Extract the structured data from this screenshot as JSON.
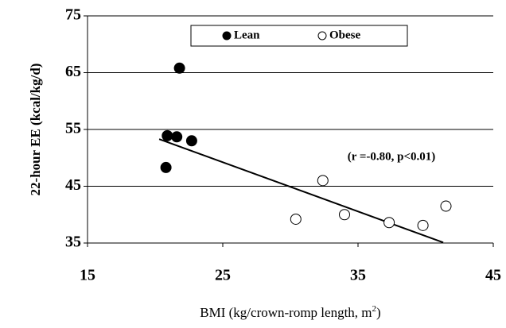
{
  "chart_data": {
    "type": "scatter",
    "x_label": [
      "BMI (kg/crown-romp length, m",
      "2",
      ")"
    ],
    "y_label": "22-hour EE (kcal/kg/d)",
    "series": [
      {
        "name": "Lean",
        "color": "#000000",
        "marker": "filled",
        "x": [
          20.8,
          20.9,
          21.6,
          22.7,
          21.8
        ],
        "values": [
          48.3,
          53.9,
          53.7,
          53.0,
          65.8
        ]
      },
      {
        "name": "Obese",
        "color": "#000000",
        "marker": "open",
        "x": [
          30.4,
          32.4,
          34.0,
          37.3,
          39.8,
          41.5
        ],
        "values": [
          39.2,
          46.0,
          40.0,
          38.6,
          38.1,
          41.5
        ]
      }
    ],
    "trendline": {
      "x": [
        20.3,
        41.3
      ],
      "values": [
        53.3,
        35.1
      ]
    },
    "annotation": "(r =-0.80, p<0.01)",
    "xlim": [
      15,
      45
    ],
    "xticks": [
      15,
      25,
      35,
      45
    ],
    "ylim": [
      35,
      75
    ],
    "yticks": [
      35,
      45,
      55,
      65,
      75
    ],
    "grid": true
  }
}
